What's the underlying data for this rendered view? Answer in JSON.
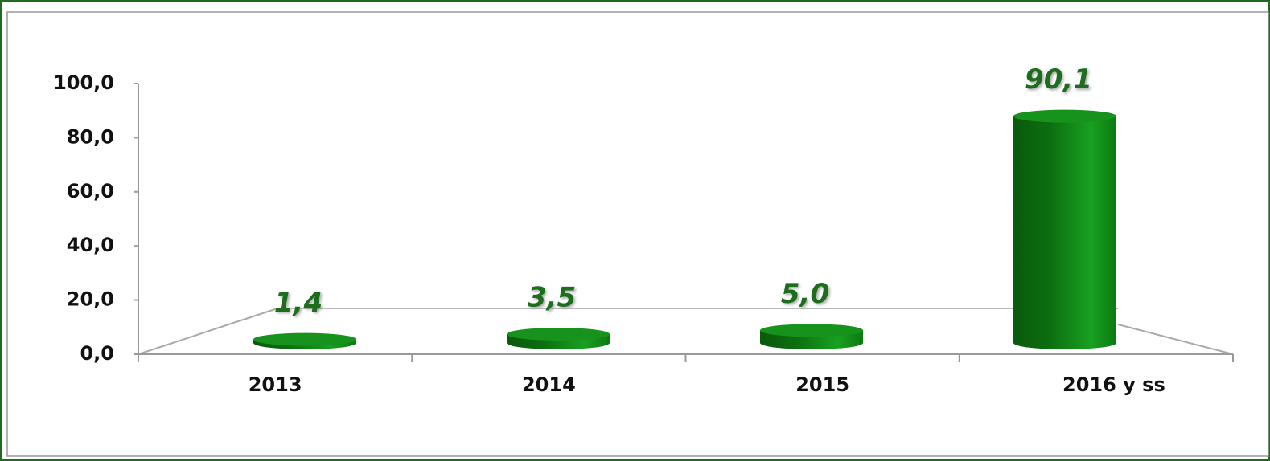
{
  "chart_data": {
    "type": "bar3d",
    "categories": [
      "2013",
      "2014",
      "2015",
      "2016 y ss"
    ],
    "values": [
      1.4,
      3.5,
      5.0,
      90.1
    ],
    "value_labels": [
      "1,4",
      "3,5",
      "5,0",
      "90,1"
    ],
    "color": "#0f8a16",
    "ylim": [
      0,
      100
    ],
    "yticks": [
      {
        "value": 0,
        "label": "0,0"
      },
      {
        "value": 20,
        "label": "20,0"
      },
      {
        "value": 40,
        "label": "40,0"
      },
      {
        "value": 60,
        "label": "60,0"
      },
      {
        "value": 80,
        "label": "80,0"
      },
      {
        "value": 100,
        "label": "100,0"
      }
    ]
  }
}
